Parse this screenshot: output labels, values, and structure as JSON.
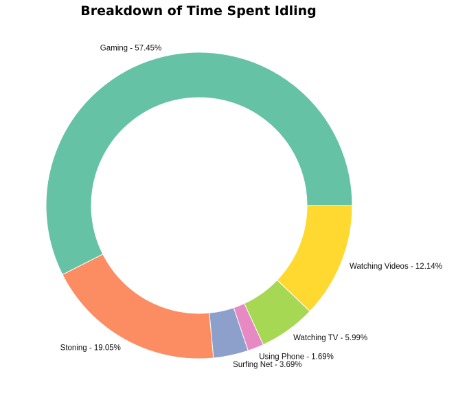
{
  "chart_data": {
    "type": "pie",
    "donut": true,
    "title": "Breakdown of Time Spent Idling",
    "slices": [
      {
        "name": "Watching Videos",
        "label": "Watching Videos - 12.14%",
        "value": 12.14,
        "color": "#ffd92f"
      },
      {
        "name": "Watching TV",
        "label": "Watching TV - 5.99%",
        "value": 5.99,
        "color": "#a6d854"
      },
      {
        "name": "Using Phone",
        "label": "Using Phone - 1.69%",
        "value": 1.69,
        "color": "#e78ac3"
      },
      {
        "name": "Surfing Net",
        "label": "Surfing Net - 3.69%",
        "value": 3.69,
        "color": "#8da0cb"
      },
      {
        "name": "Stoning",
        "label": "Stoning - 19.05%",
        "value": 19.05,
        "color": "#fc8d62"
      },
      {
        "name": "Gaming",
        "label": "Gaming - 57.45%",
        "value": 57.45,
        "color": "#66c2a5"
      }
    ]
  }
}
